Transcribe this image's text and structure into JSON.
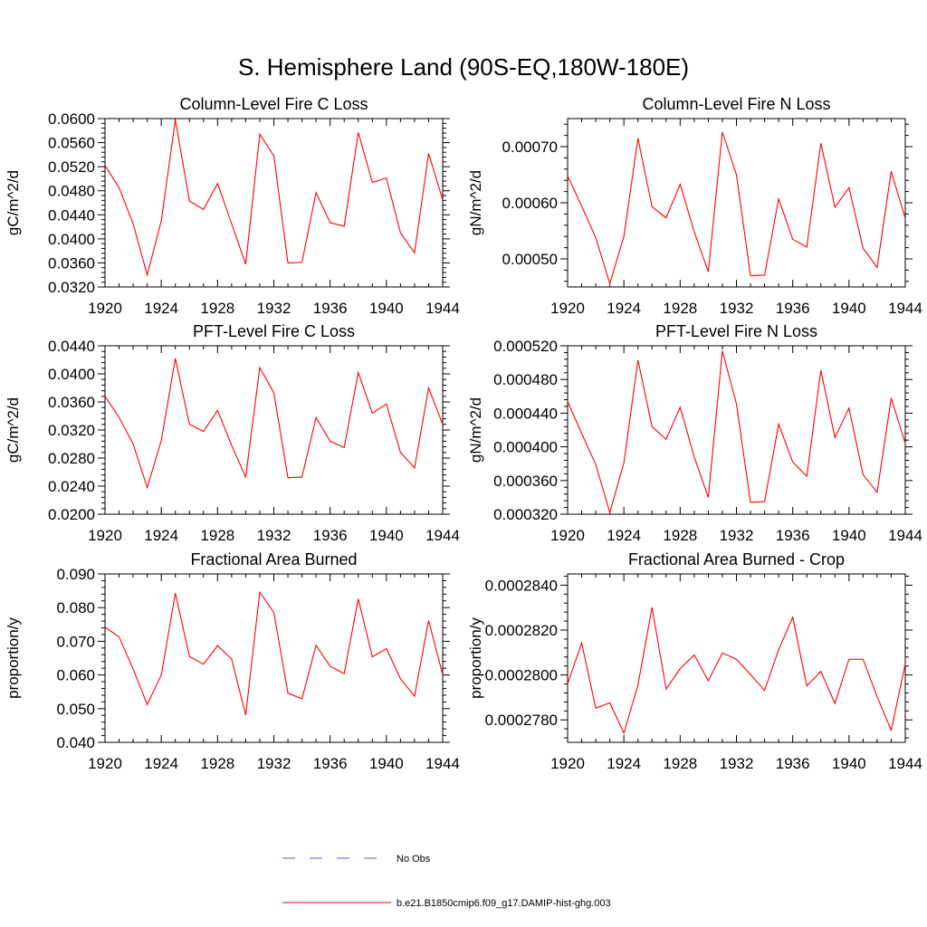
{
  "title": "S. Hemisphere Land (90S-EQ,180W-180E)",
  "legend": [
    {
      "label": "No Obs",
      "color": "#5b5bd6",
      "dash": true
    },
    {
      "label": "b.e21.B1850cmip6.f09_g17.DAMIP-hist-ghg.003",
      "color": "#ff0000",
      "dash": false
    }
  ],
  "chart_data": [
    {
      "type": "line",
      "title": "Column-Level Fire C Loss",
      "ylabel": "gC/m^2/d",
      "xlim": [
        1920,
        1944
      ],
      "ylim": [
        0.032,
        0.06
      ],
      "xticks": [
        "1920",
        "1924",
        "1928",
        "1932",
        "1936",
        "1940",
        "1944"
      ],
      "yticks": [
        "0.0320",
        "0.0360",
        "0.0400",
        "0.0440",
        "0.0480",
        "0.0520",
        "0.0560",
        "0.0600"
      ],
      "x": [
        1920,
        1921,
        1922,
        1923,
        1924,
        1925,
        1926,
        1927,
        1928,
        1929,
        1930,
        1931,
        1932,
        1933,
        1934,
        1935,
        1936,
        1937,
        1938,
        1939,
        1940,
        1941,
        1942,
        1943,
        1944
      ],
      "series": [
        {
          "color": "#ff0000",
          "values": [
            0.0522,
            0.0485,
            0.0425,
            0.034,
            0.043,
            0.0598,
            0.0463,
            0.0449,
            0.0492,
            0.0425,
            0.0358,
            0.0574,
            0.0538,
            0.036,
            0.0361,
            0.0477,
            0.0427,
            0.0421,
            0.0577,
            0.0494,
            0.0501,
            0.041,
            0.0377,
            0.0542,
            0.0465
          ]
        }
      ]
    },
    {
      "type": "line",
      "title": "Column-Level Fire N Loss",
      "ylabel": "gN/m^2/d",
      "xlim": [
        1920,
        1944
      ],
      "ylim": [
        0.00045,
        0.00075
      ],
      "xticks": [
        "1920",
        "1924",
        "1928",
        "1932",
        "1936",
        "1940",
        "1944"
      ],
      "yticks": [
        "0.00050",
        "0.00060",
        "0.00070"
      ],
      "x": [
        1920,
        1921,
        1922,
        1923,
        1924,
        1925,
        1926,
        1927,
        1928,
        1929,
        1930,
        1931,
        1932,
        1933,
        1934,
        1935,
        1936,
        1937,
        1938,
        1939,
        1940,
        1941,
        1942,
        1943,
        1944
      ],
      "series": [
        {
          "color": "#ff0000",
          "values": [
            0.000648,
            0.000594,
            0.000538,
            0.000456,
            0.00054,
            0.000715,
            0.000593,
            0.000573,
            0.000633,
            0.000548,
            0.000477,
            0.000726,
            0.00065,
            0.00047,
            0.000471,
            0.000607,
            0.000535,
            0.000521,
            0.000706,
            0.000592,
            0.000627,
            0.000519,
            0.000485,
            0.000656,
            0.000572
          ]
        }
      ]
    },
    {
      "type": "line",
      "title": "PFT-Level Fire C Loss",
      "ylabel": "gC/m^2/d",
      "xlim": [
        1920,
        1944
      ],
      "ylim": [
        0.02,
        0.044
      ],
      "xticks": [
        "1920",
        "1924",
        "1928",
        "1932",
        "1936",
        "1940",
        "1944"
      ],
      "yticks": [
        "0.0200",
        "0.0240",
        "0.0280",
        "0.0320",
        "0.0360",
        "0.0400",
        "0.0440"
      ],
      "x": [
        1920,
        1921,
        1922,
        1923,
        1924,
        1925,
        1926,
        1927,
        1928,
        1929,
        1930,
        1931,
        1932,
        1933,
        1934,
        1935,
        1936,
        1937,
        1938,
        1939,
        1940,
        1941,
        1942,
        1943,
        1944
      ],
      "series": [
        {
          "color": "#ff0000",
          "values": [
            0.0368,
            0.0338,
            0.03,
            0.0238,
            0.0305,
            0.0422,
            0.0328,
            0.0318,
            0.0348,
            0.0298,
            0.0253,
            0.0409,
            0.0373,
            0.0252,
            0.0253,
            0.0338,
            0.0304,
            0.0295,
            0.0402,
            0.0344,
            0.0357,
            0.0288,
            0.0266,
            0.038,
            0.0328
          ]
        }
      ]
    },
    {
      "type": "line",
      "title": "PFT-Level Fire N Loss",
      "ylabel": "gN/m^2/d",
      "xlim": [
        1920,
        1944
      ],
      "ylim": [
        0.00032,
        0.00052
      ],
      "xticks": [
        "1920",
        "1924",
        "1928",
        "1932",
        "1936",
        "1940",
        "1944"
      ],
      "yticks": [
        "0.000320",
        "0.000360",
        "0.000400",
        "0.000440",
        "0.000480",
        "0.000520"
      ],
      "x": [
        1920,
        1921,
        1922,
        1923,
        1924,
        1925,
        1926,
        1927,
        1928,
        1929,
        1930,
        1931,
        1932,
        1933,
        1934,
        1935,
        1936,
        1937,
        1938,
        1939,
        1940,
        1941,
        1942,
        1943,
        1944
      ],
      "series": [
        {
          "color": "#ff0000",
          "values": [
            0.000454,
            0.000416,
            0.000379,
            0.000322,
            0.000381,
            0.000503,
            0.000424,
            0.000409,
            0.000447,
            0.000388,
            0.00034,
            0.000514,
            0.000451,
            0.000334,
            0.000335,
            0.000427,
            0.000382,
            0.000365,
            0.000491,
            0.000411,
            0.000446,
            0.000367,
            0.000346,
            0.000458,
            0.000404
          ]
        }
      ]
    },
    {
      "type": "line",
      "title": "Fractional Area Burned",
      "ylabel": "proportion/y",
      "xlim": [
        1920,
        1944
      ],
      "ylim": [
        0.04,
        0.09
      ],
      "xticks": [
        "1920",
        "1924",
        "1928",
        "1932",
        "1936",
        "1940",
        "1944"
      ],
      "yticks": [
        "0.040",
        "0.050",
        "0.060",
        "0.070",
        "0.080",
        "0.090"
      ],
      "x": [
        1920,
        1921,
        1922,
        1923,
        1924,
        1925,
        1926,
        1927,
        1928,
        1929,
        1930,
        1931,
        1932,
        1933,
        1934,
        1935,
        1936,
        1937,
        1938,
        1939,
        1940,
        1941,
        1942,
        1943,
        1944
      ],
      "series": [
        {
          "color": "#ff0000",
          "values": [
            0.0742,
            0.0713,
            0.0618,
            0.0512,
            0.06,
            0.0843,
            0.0655,
            0.0632,
            0.0687,
            0.0647,
            0.0481,
            0.0846,
            0.0786,
            0.0546,
            0.0529,
            0.0688,
            0.0626,
            0.0604,
            0.0826,
            0.0654,
            0.0678,
            0.0589,
            0.0537,
            0.0762,
            0.0601
          ]
        }
      ]
    },
    {
      "type": "line",
      "title": "Fractional Area Burned - Crop",
      "ylabel": "proportion/y",
      "xlim": [
        1920,
        1944
      ],
      "ylim": [
        0.000277,
        0.0002845
      ],
      "xticks": [
        "1920",
        "1924",
        "1928",
        "1932",
        "1936",
        "1940",
        "1944"
      ],
      "yticks": [
        "0.0002780",
        "0.0002800",
        "0.0002820",
        "0.0002840"
      ],
      "x": [
        1920,
        1921,
        1922,
        1923,
        1924,
        1925,
        1926,
        1927,
        1928,
        1929,
        1930,
        1931,
        1932,
        1933,
        1934,
        1935,
        1936,
        1937,
        1938,
        1939,
        1940,
        1941,
        1942,
        1943,
        1944
      ],
      "series": [
        {
          "color": "#ff0000",
          "values": [
            0.0002796,
            0.00028143,
            0.00027852,
            0.00027876,
            0.00027741,
            0.00027955,
            0.00028301,
            0.00027937,
            0.00028028,
            0.00028089,
            0.00027974,
            0.00028098,
            0.0002807,
            0.00028002,
            0.00027931,
            0.00028113,
            0.00028257,
            0.00027951,
            0.00028016,
            0.00027873,
            0.0002807,
            0.0002807,
            0.00027903,
            0.00027754,
            0.00028049
          ]
        }
      ]
    }
  ]
}
